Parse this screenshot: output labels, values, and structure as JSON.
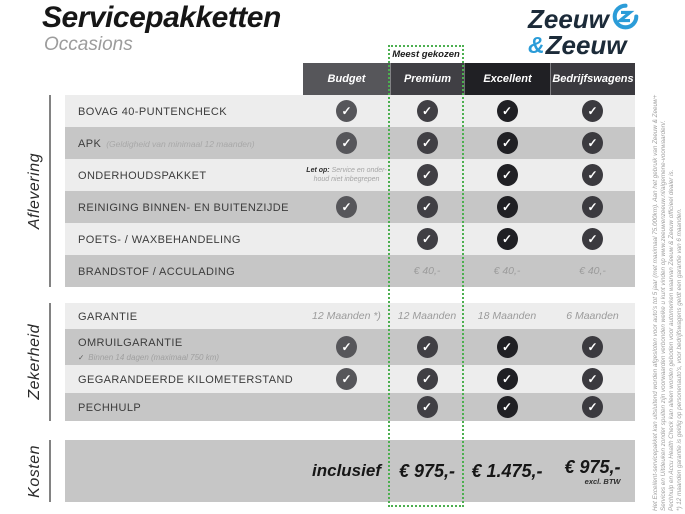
{
  "page": {
    "title": "Servicepakketten",
    "subtitle": "Occasions"
  },
  "logo": {
    "word1": "Zeeuw",
    "amp": "&",
    "word2": "Zeeuw",
    "blue": "#2b9cd8",
    "navy": "#1c2b39"
  },
  "badge": {
    "label": "Meest gekozen",
    "color": "#4caf50"
  },
  "columns": [
    {
      "id": "budget",
      "label": "Budget",
      "color": "#56565a"
    },
    {
      "id": "premium",
      "label": "Premium",
      "color": "#403f44",
      "highlighted": true
    },
    {
      "id": "excellent",
      "label": "Excellent",
      "color": "#202024"
    },
    {
      "id": "bedrijfswagens",
      "label": "Bedrijfswagens",
      "color": "#3b3a3f"
    }
  ],
  "sections": [
    {
      "label": "Aflevering",
      "rows": [
        {
          "label": "BOVAG 40-PUNTENCHECK",
          "cells": [
            {
              "type": "check"
            },
            {
              "type": "check"
            },
            {
              "type": "check"
            },
            {
              "type": "check"
            }
          ]
        },
        {
          "label": "APK",
          "sub_inline": "(Geldigheid van minimaal 12 maanden)",
          "cells": [
            {
              "type": "check"
            },
            {
              "type": "check"
            },
            {
              "type": "check"
            },
            {
              "type": "check"
            }
          ]
        },
        {
          "label": "ONDERHOUDSPAKKET",
          "cells": [
            {
              "type": "note",
              "bold": "Let op:",
              "line1": "Service en onder-",
              "line2": "houd niet inbegrepen"
            },
            {
              "type": "check"
            },
            {
              "type": "check"
            },
            {
              "type": "check"
            }
          ]
        },
        {
          "label": "REINIGING BINNEN- EN BUITENZIJDE",
          "cells": [
            {
              "type": "check"
            },
            {
              "type": "check"
            },
            {
              "type": "check"
            },
            {
              "type": "check"
            }
          ]
        },
        {
          "label": "POETS- / WAXBEHANDELING",
          "cells": [
            {
              "type": "empty"
            },
            {
              "type": "check"
            },
            {
              "type": "check"
            },
            {
              "type": "check"
            }
          ]
        },
        {
          "label": "BRANDSTOF / ACCULADING",
          "cells": [
            {
              "type": "empty"
            },
            {
              "type": "text",
              "value": "€ 40,-"
            },
            {
              "type": "text",
              "value": "€ 40,-"
            },
            {
              "type": "text",
              "value": "€ 40,-"
            }
          ]
        }
      ]
    },
    {
      "label": "Zekerheid",
      "rows": [
        {
          "label": "GARANTIE",
          "cells": [
            {
              "type": "text",
              "value": "12 Maanden *)"
            },
            {
              "type": "text",
              "value": "12 Maanden"
            },
            {
              "type": "text",
              "value": "18 Maanden"
            },
            {
              "type": "text",
              "value": "6 Maanden"
            }
          ]
        },
        {
          "label": "OMRUILGARANTIE",
          "sub_below": {
            "icon": "✓",
            "text": "Binnen 14 dagen (maximaal 750 km)"
          },
          "cells": [
            {
              "type": "check"
            },
            {
              "type": "check"
            },
            {
              "type": "check"
            },
            {
              "type": "check"
            }
          ]
        },
        {
          "label": "GEGARANDEERDE KILOMETERSTAND",
          "cells": [
            {
              "type": "check"
            },
            {
              "type": "check"
            },
            {
              "type": "check"
            },
            {
              "type": "check"
            }
          ]
        },
        {
          "label": "PECHHULP",
          "cells": [
            {
              "type": "empty"
            },
            {
              "type": "check"
            },
            {
              "type": "check"
            },
            {
              "type": "check"
            }
          ]
        }
      ]
    },
    {
      "label": "Kosten",
      "rows": [
        {
          "label": "",
          "cells": [
            {
              "type": "inclusief",
              "value": "inclusief"
            },
            {
              "type": "price",
              "value": "€ 975,-"
            },
            {
              "type": "price",
              "value": "€ 1.475,-"
            },
            {
              "type": "price",
              "value": "€ 975,-",
              "sub": "excl. BTW"
            }
          ]
        }
      ]
    }
  ],
  "fineprint": {
    "lines": [
      "Het Excellent-servicepakket kan uitsluitend worden afgesloten voor auto's tot 5 jaar (met maximaal 75.000km). Aan het gebruik van Zeeuw & Zeeuw+",
      "Services en Uitdeuken zonder spuiten zijn voorwaarden verbonden welke u kunt vinden op www.zeeuwenzeeuw.nl/algemene-voorwaarden/.",
      "Pechhulp en Accu Health Check kan alleen worden geboden voor automerken waarvan Zeeuw & Zeeuw officieel dealer is.",
      "*) 12 maanden garantie is geldig op personenauto's, voor bedrijfswagens geldt een garantie van 6 maanden."
    ]
  },
  "colors": {
    "row_light": "#ededed",
    "row_dark": "#c6c6c6",
    "accent_green": "#4caf50"
  }
}
